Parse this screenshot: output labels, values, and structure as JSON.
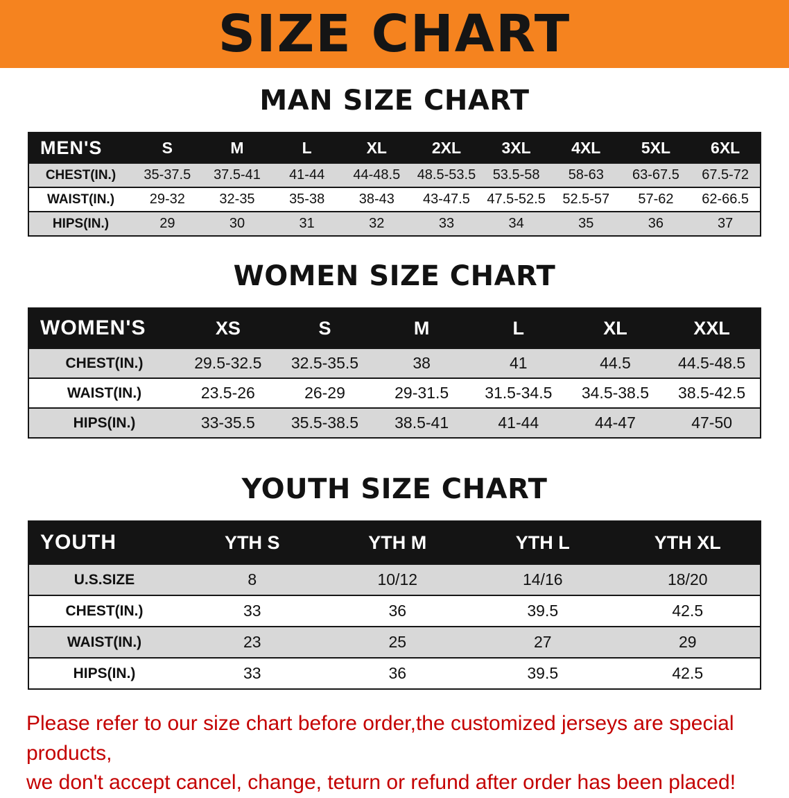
{
  "banner": {
    "title": "SIZE CHART",
    "bg_color": "#F5831F"
  },
  "sections": [
    {
      "heading": "MAN SIZE CHART",
      "table": {
        "title": "MEN'S",
        "columns": [
          "S",
          "M",
          "L",
          "XL",
          "2XL",
          "3XL",
          "4XL",
          "5XL",
          "6XL"
        ],
        "rows": [
          {
            "label": "CHEST(IN.)",
            "values": [
              "35-37.5",
              "37.5-41",
              "41-44",
              "44-48.5",
              "48.5-53.5",
              "53.5-58",
              "58-63",
              "63-67.5",
              "67.5-72"
            ]
          },
          {
            "label": "WAIST(IN.)",
            "values": [
              "29-32",
              "32-35",
              "35-38",
              "38-43",
              "43-47.5",
              "47.5-52.5",
              "52.5-57",
              "57-62",
              "62-66.5"
            ]
          },
          {
            "label": "HIPS(IN.)",
            "values": [
              "29",
              "30",
              "31",
              "32",
              "33",
              "34",
              "35",
              "36",
              "37"
            ]
          }
        ]
      }
    },
    {
      "heading": "WOMEN SIZE CHART",
      "table": {
        "title": "WOMEN'S",
        "columns": [
          "XS",
          "S",
          "M",
          "L",
          "XL",
          "XXL"
        ],
        "rows": [
          {
            "label": "CHEST(IN.)",
            "values": [
              "29.5-32.5",
              "32.5-35.5",
              "38",
              "41",
              "44.5",
              "44.5-48.5"
            ]
          },
          {
            "label": "WAIST(IN.)",
            "values": [
              "23.5-26",
              "26-29",
              "29-31.5",
              "31.5-34.5",
              "34.5-38.5",
              "38.5-42.5"
            ]
          },
          {
            "label": "HIPS(IN.)",
            "values": [
              "33-35.5",
              "35.5-38.5",
              "38.5-41",
              "41-44",
              "44-47",
              "47-50"
            ]
          }
        ]
      }
    },
    {
      "heading": "YOUTH SIZE CHART",
      "table": {
        "title": "YOUTH",
        "columns": [
          "YTH S",
          "YTH M",
          "YTH L",
          "YTH XL"
        ],
        "rows": [
          {
            "label": "U.S.SIZE",
            "values": [
              "8",
              "10/12",
              "14/16",
              "18/20"
            ]
          },
          {
            "label": "CHEST(IN.)",
            "values": [
              "33",
              "36",
              "39.5",
              "42.5"
            ]
          },
          {
            "label": "WAIST(IN.)",
            "values": [
              "23",
              "25",
              "27",
              "29"
            ]
          },
          {
            "label": "HIPS(IN.)",
            "values": [
              "33",
              "36",
              "39.5",
              "42.5"
            ]
          }
        ]
      }
    }
  ],
  "disclaimer": {
    "color": "#C40000",
    "lines": [
      "Please refer to our size chart before order,the customized jerseys are special products,",
      "we don't accept cancel, change, teturn or refund after order has been placed!"
    ]
  }
}
